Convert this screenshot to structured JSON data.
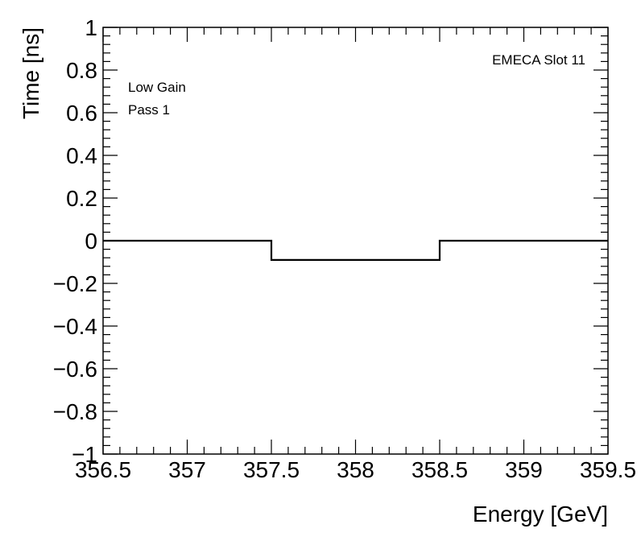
{
  "chart_data": {
    "type": "line",
    "style": "step-histogram",
    "title": "",
    "xlabel": "Energy [GeV]",
    "ylabel": "Time [ns]",
    "xlim": [
      356.5,
      359.5
    ],
    "ylim": [
      -1,
      1
    ],
    "x_ticks": [
      "356.5",
      "357",
      "357.5",
      "358",
      "358.5",
      "359",
      "359.5"
    ],
    "y_ticks": [
      "−1",
      "−0.8",
      "−0.6",
      "−0.4",
      "−0.2",
      "0",
      "0.2",
      "0.4",
      "0.6",
      "0.8",
      "1"
    ],
    "bins": [
      {
        "x0": 356.5,
        "x1": 357.5,
        "y": 0
      },
      {
        "x0": 357.5,
        "x1": 358.5,
        "y": -0.09
      },
      {
        "x0": 358.5,
        "x1": 359.5,
        "y": 0
      }
    ],
    "annotations": {
      "top_right": "EMECA Slot 11",
      "top_left": [
        "Low Gain",
        "Pass 1"
      ]
    },
    "grid": false,
    "line_color": "#000000"
  }
}
